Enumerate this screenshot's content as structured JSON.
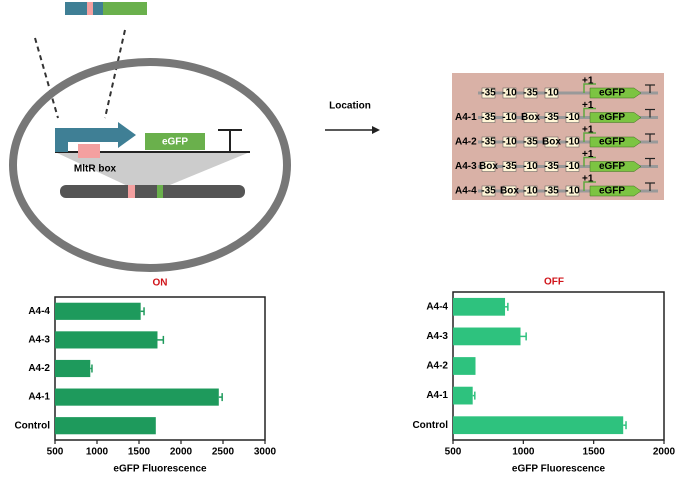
{
  "diagram": {
    "reporter": "eGFP",
    "box_label": "MltR box",
    "arrow_label": "Location",
    "tss_label": "+1",
    "construct_rows": [
      {
        "elements": [
          "-35",
          "-10",
          "-35",
          "-10"
        ]
      },
      {
        "label": "A4-1",
        "elements": [
          "-35",
          "-10",
          "Box",
          "-35",
          "-10"
        ]
      },
      {
        "label": "A4-2",
        "elements": [
          "-35",
          "-10",
          "-35",
          "Box",
          "-10"
        ]
      },
      {
        "label": "A4-3",
        "elements": [
          "Box",
          "-35",
          "-10",
          "-35",
          "-10"
        ]
      },
      {
        "label": "A4-4",
        "elements": [
          "-35",
          "Box",
          "-10",
          "-35",
          "-10"
        ]
      }
    ]
  },
  "chart_data": [
    {
      "type": "barh",
      "title": "ON",
      "x_label": "eGFP Fluorescence",
      "categories": [
        "A4-4",
        "A4-3",
        "A4-2",
        "A4-1",
        "Control"
      ],
      "values": [
        1520,
        1720,
        920,
        2450,
        1700
      ],
      "errors": [
        40,
        70,
        20,
        40,
        0
      ],
      "color": "#1e9a5c",
      "xlim": [
        500,
        3000
      ],
      "xticks": [
        500,
        1000,
        1500,
        2000,
        2500,
        3000
      ]
    },
    {
      "type": "barh",
      "title": "OFF",
      "x_label": "eGFP Fluorescence",
      "categories": [
        "A4-4",
        "A4-3",
        "A4-2",
        "A4-1",
        "Control"
      ],
      "values": [
        870,
        980,
        660,
        640,
        1710
      ],
      "errors": [
        20,
        40,
        0,
        15,
        20
      ],
      "color": "#2ec27e",
      "xlim": [
        500,
        2000
      ],
      "xticks": [
        500,
        1000,
        1500,
        2000
      ]
    }
  ]
}
